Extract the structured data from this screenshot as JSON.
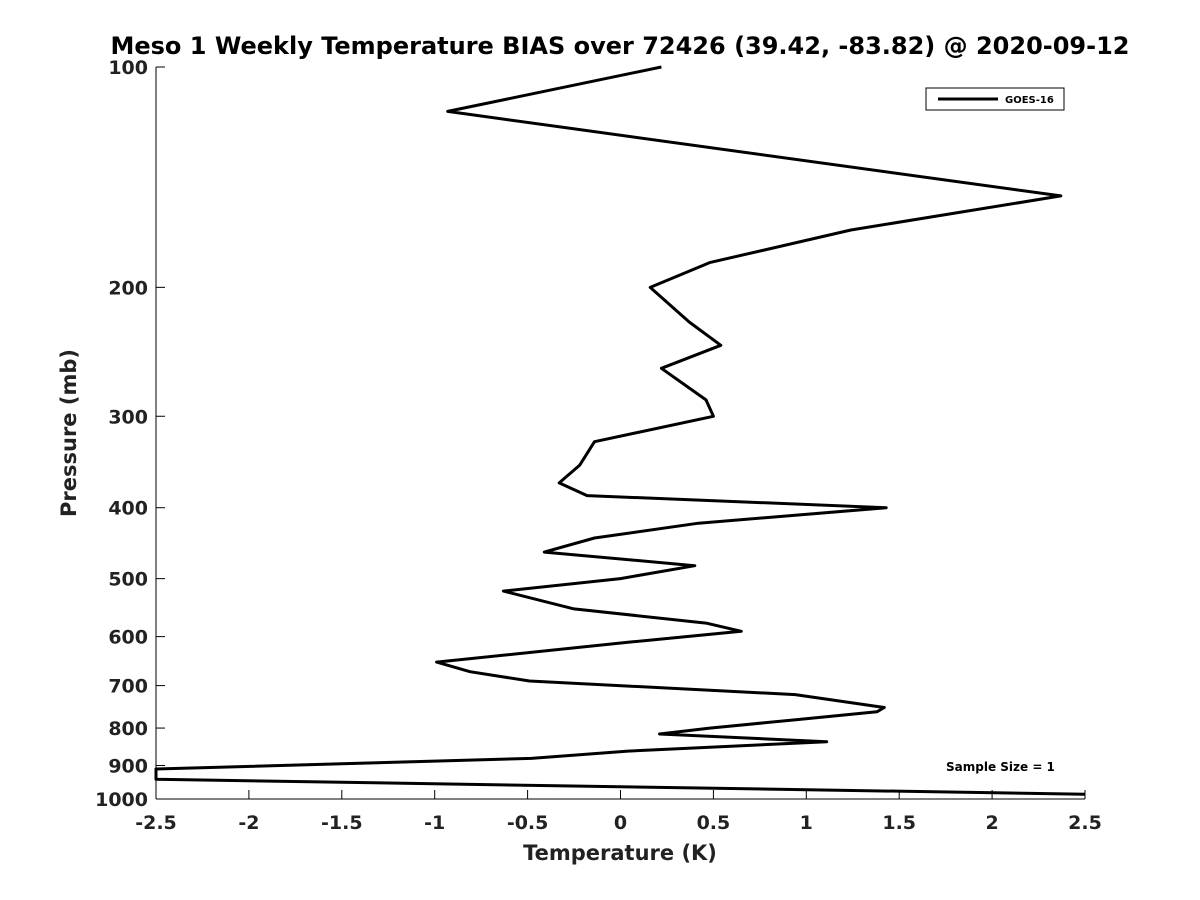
{
  "chart_data": {
    "type": "line",
    "title": "Meso 1 Weekly Temperature BIAS over 72426 (39.42, -83.82) @ 2020-09-12",
    "xlabel": "Temperature (K)",
    "ylabel": "Pressure (mb)",
    "xlim": [
      -2.5,
      2.5
    ],
    "ylim": [
      100,
      1000
    ],
    "y_scale": "log",
    "y_reversed": true,
    "xticks": [
      "-2.5",
      "-2",
      "-1.5",
      "-1",
      "-0.5",
      "0",
      "0.5",
      "1",
      "1.5",
      "2",
      "2.5"
    ],
    "xtick_values": [
      -2.5,
      -2,
      -1.5,
      -1,
      -0.5,
      0,
      0.5,
      1,
      1.5,
      2,
      2.5
    ],
    "yticks": [
      "100",
      "200",
      "300",
      "400",
      "500",
      "600",
      "700",
      "800",
      "900",
      "1000"
    ],
    "ytick_values": [
      100,
      200,
      300,
      400,
      500,
      600,
      700,
      800,
      900,
      1000
    ],
    "legend": {
      "position": "top-right",
      "entries": [
        "GOES-16"
      ]
    },
    "annotation": "Sample Size = 1",
    "grid": false,
    "line_color": "#000000",
    "series": [
      {
        "name": "GOES-16",
        "points": [
          [
            0.22,
            100
          ],
          [
            -0.93,
            115
          ],
          [
            2.37,
            150
          ],
          [
            1.24,
            167
          ],
          [
            0.48,
            185
          ],
          [
            0.16,
            200
          ],
          [
            0.37,
            223
          ],
          [
            0.54,
            240
          ],
          [
            0.22,
            258
          ],
          [
            0.46,
            285
          ],
          [
            0.5,
            300
          ],
          [
            -0.14,
            325
          ],
          [
            -0.22,
            350
          ],
          [
            -0.33,
            370
          ],
          [
            -0.18,
            385
          ],
          [
            1.43,
            400
          ],
          [
            0.42,
            420
          ],
          [
            -0.14,
            440
          ],
          [
            -0.41,
            460
          ],
          [
            0.4,
            480
          ],
          [
            0.0,
            500
          ],
          [
            -0.63,
            520
          ],
          [
            -0.25,
            550
          ],
          [
            0.46,
            575
          ],
          [
            0.65,
            590
          ],
          [
            0.06,
            610
          ],
          [
            -0.99,
            650
          ],
          [
            -0.81,
            670
          ],
          [
            -0.49,
            690
          ],
          [
            0.94,
            720
          ],
          [
            1.42,
            750
          ],
          [
            1.38,
            760
          ],
          [
            0.93,
            780
          ],
          [
            0.48,
            800
          ],
          [
            0.21,
            815
          ],
          [
            1.11,
            835
          ],
          [
            0.04,
            860
          ],
          [
            -0.48,
            880
          ],
          [
            -2.5,
            910
          ],
          [
            -2.5,
            940
          ],
          [
            2.5,
            985
          ]
        ]
      }
    ]
  }
}
